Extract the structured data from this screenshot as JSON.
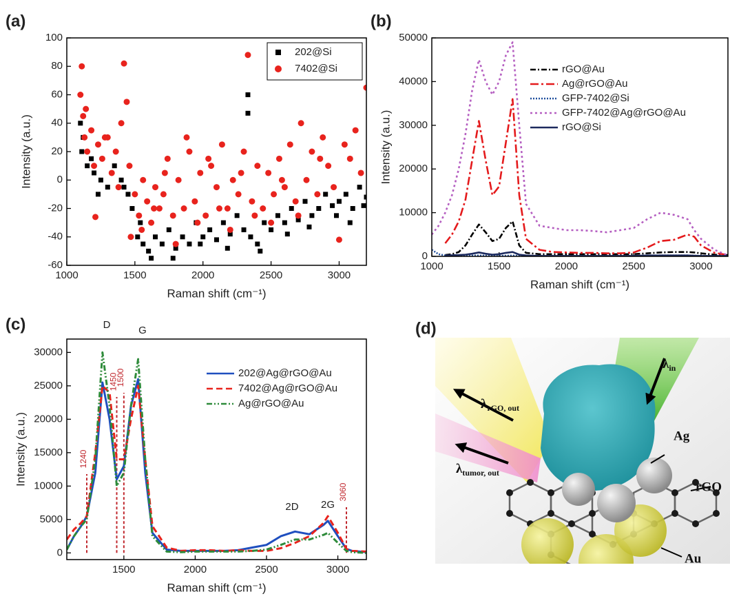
{
  "chart_data": [
    {
      "type": "scatter",
      "panel": "(a)",
      "x_label": "Raman shift (cm⁻¹)",
      "y_label": "Intensity (a.u.)",
      "xlim": [
        1000,
        3200
      ],
      "ylim": [
        -60,
        100
      ],
      "xticks": [
        1000,
        1500,
        2000,
        2500,
        3000
      ],
      "yticks": [
        -60,
        -40,
        -20,
        0,
        20,
        40,
        60,
        80,
        100
      ],
      "legend": "upper right",
      "series": [
        {
          "name": "202@Si",
          "color": "#000000",
          "marker": "square",
          "x": [
            1100,
            1120,
            1150,
            1200,
            1250,
            1300,
            1350,
            1400,
            1450,
            1480,
            1520,
            1560,
            1600,
            1650,
            1700,
            1750,
            1800,
            1850,
            1900,
            1950,
            2000,
            2050,
            2100,
            2150,
            2200,
            2250,
            2300,
            2330,
            2330,
            2350,
            2400,
            2450,
            2500,
            2550,
            2600,
            2650,
            2700,
            2750,
            2800,
            2850,
            2900,
            2950,
            3000,
            3050,
            3100,
            3150,
            3200,
            1110,
            1180,
            1230,
            1420,
            1540,
            1620,
            1780,
            1980,
            2180,
            2420,
            2620,
            2780,
            2980,
            3080,
            3180
          ],
          "values": [
            40,
            30,
            10,
            5,
            0,
            -5,
            10,
            0,
            -10,
            -20,
            -40,
            -45,
            -50,
            -40,
            -45,
            -35,
            -48,
            -40,
            -45,
            -30,
            -40,
            -35,
            -42,
            -30,
            -38,
            -25,
            -35,
            60,
            47,
            -40,
            -45,
            -30,
            -35,
            -25,
            -30,
            -20,
            -28,
            -15,
            -25,
            -20,
            -10,
            -18,
            -15,
            -10,
            -20,
            -5,
            -12,
            20,
            15,
            -10,
            -5,
            -30,
            -55,
            -55,
            -45,
            -48,
            -50,
            -38,
            -33,
            -25,
            -30,
            -18
          ]
        },
        {
          "name": "7402@Si",
          "color": "#e8231d",
          "marker": "circle",
          "x": [
            1100,
            1110,
            1120,
            1130,
            1150,
            1180,
            1200,
            1230,
            1260,
            1300,
            1330,
            1360,
            1400,
            1420,
            1440,
            1460,
            1500,
            1530,
            1560,
            1590,
            1620,
            1650,
            1680,
            1710,
            1740,
            1780,
            1820,
            1860,
            1900,
            1940,
            1980,
            2020,
            2060,
            2100,
            2140,
            2180,
            2220,
            2260,
            2300,
            2330,
            2360,
            2400,
            2440,
            2480,
            2520,
            2560,
            2600,
            2640,
            2680,
            2720,
            2760,
            2800,
            2840,
            2880,
            2920,
            2960,
            3000,
            3040,
            3080,
            3120,
            3160,
            3200,
            1140,
            1210,
            1280,
            1380,
            1470,
            1550,
            1640,
            1720,
            1800,
            1880,
            1960,
            2040,
            2120,
            2200,
            2280,
            2380,
            2500,
            2580,
            2700,
            2860
          ],
          "values": [
            60,
            80,
            45,
            30,
            20,
            35,
            10,
            25,
            15,
            30,
            5,
            20,
            40,
            82,
            55,
            10,
            -10,
            -25,
            0,
            -15,
            -30,
            -5,
            -20,
            -10,
            15,
            -25,
            0,
            -20,
            20,
            -15,
            5,
            -25,
            10,
            -5,
            25,
            -20,
            0,
            -10,
            20,
            88,
            -15,
            10,
            -20,
            5,
            -10,
            15,
            -5,
            25,
            -15,
            40,
            0,
            20,
            -10,
            30,
            10,
            -5,
            -42,
            25,
            15,
            35,
            5,
            65,
            50,
            -26,
            30,
            -5,
            -40,
            -35,
            -20,
            5,
            -45,
            30,
            -30,
            15,
            -20,
            -35,
            5,
            -25,
            -30,
            0,
            -25,
            15
          ]
        }
      ]
    },
    {
      "type": "line",
      "panel": "(b)",
      "x_label": "Raman shift (cm⁻¹)",
      "y_label": "Intensity (a.u.)",
      "xlim": [
        1000,
        3200
      ],
      "ylim": [
        0,
        50000
      ],
      "xticks": [
        1000,
        1500,
        2000,
        2500,
        3000
      ],
      "yticks": [
        0,
        10000,
        20000,
        30000,
        40000,
        50000
      ],
      "legend": "upper right",
      "x": [
        1000,
        1050,
        1100,
        1150,
        1200,
        1250,
        1300,
        1350,
        1400,
        1450,
        1500,
        1550,
        1600,
        1650,
        1700,
        1800,
        1900,
        2000,
        2100,
        2200,
        2300,
        2400,
        2500,
        2600,
        2700,
        2800,
        2900,
        2950,
        3000,
        3100,
        3200
      ],
      "series": [
        {
          "name": "rGO@Au",
          "color": "#000000",
          "dash": "8 3 2 3",
          "values": [
            null,
            null,
            300,
            500,
            1000,
            2500,
            5000,
            7300,
            5500,
            3500,
            4000,
            6500,
            8000,
            2500,
            800,
            500,
            500,
            500,
            500,
            500,
            500,
            500,
            500,
            700,
            900,
            1000,
            1000,
            900,
            700,
            400,
            300
          ]
        },
        {
          "name": "Ag@rGO@Au",
          "color": "#e41a1c",
          "dash": "12 4 3 4",
          "values": [
            null,
            null,
            3000,
            5000,
            8000,
            13000,
            22000,
            31000,
            22000,
            14000,
            16000,
            26000,
            36000,
            14000,
            4000,
            1500,
            1000,
            900,
            800,
            800,
            700,
            700,
            900,
            2000,
            3500,
            3800,
            5000,
            4500,
            2500,
            800,
            300
          ]
        },
        {
          "name": "GFP-7402@Si",
          "color": "#1f4e9c",
          "dash": "2 2",
          "values": [
            1500,
            500,
            200,
            100,
            100,
            100,
            150,
            200,
            150,
            100,
            100,
            150,
            200,
            100,
            100,
            100,
            100,
            100,
            100,
            100,
            100,
            100,
            100,
            150,
            200,
            200,
            200,
            150,
            100,
            100,
            100
          ]
        },
        {
          "name": "GFP-7402@Ag@rGO@Au",
          "color": "#b55fc1",
          "dash": "3 4",
          "values": [
            5000,
            7000,
            10000,
            14000,
            20000,
            28000,
            38000,
            45000,
            40000,
            37000,
            40000,
            46000,
            49000,
            30000,
            12000,
            7000,
            6500,
            6000,
            6000,
            5800,
            5500,
            6000,
            6500,
            8500,
            10000,
            9500,
            8500,
            6000,
            4000,
            1500,
            200
          ]
        },
        {
          "name": "rGO@Si",
          "color": "#1c2a5e",
          "values": [
            null,
            null,
            200,
            250,
            300,
            400,
            600,
            900,
            600,
            400,
            500,
            800,
            1000,
            400,
            200,
            100,
            100,
            100,
            100,
            100,
            100,
            100,
            100,
            200,
            200,
            200,
            200,
            150,
            100,
            100,
            100
          ]
        }
      ]
    },
    {
      "type": "line",
      "panel": "(c)",
      "x_label": "Raman shift (cm⁻¹)",
      "y_label": "Intensity (a.u.)",
      "xlim": [
        1100,
        3200
      ],
      "ylim": [
        -1000,
        32000
      ],
      "xticks": [
        1500,
        2000,
        2500,
        3000
      ],
      "yticks": [
        0,
        5000,
        10000,
        15000,
        20000,
        25000,
        30000
      ],
      "legend": "upper right",
      "annotations": [
        "D",
        "G",
        "2D",
        "2G"
      ],
      "reference_lines": [
        1240,
        1450,
        1500,
        3060
      ],
      "reference_color": "#c0272d",
      "x": [
        1100,
        1150,
        1200,
        1240,
        1300,
        1350,
        1400,
        1450,
        1500,
        1550,
        1600,
        1650,
        1700,
        1800,
        1900,
        2000,
        2100,
        2200,
        2300,
        2400,
        2500,
        2600,
        2700,
        2800,
        2900,
        2930,
        3000,
        3060,
        3100,
        3200
      ],
      "series": [
        {
          "name": "202@Ag@rGO@Au",
          "color": "#1f4fbf",
          "values": [
            500,
            2500,
            4000,
            5500,
            12000,
            25500,
            20000,
            11000,
            13000,
            22000,
            26000,
            12000,
            3000,
            500,
            300,
            300,
            300,
            300,
            400,
            800,
            1200,
            2500,
            3200,
            2800,
            4200,
            4800,
            2500,
            600,
            300,
            100
          ]
        },
        {
          "name": "7402@Ag@rGO@Au",
          "color": "#e8231d",
          "dash": "9 5",
          "values": [
            2000,
            3500,
            4500,
            5500,
            15000,
            25000,
            24000,
            14000,
            14000,
            20000,
            25000,
            14000,
            4000,
            800,
            300,
            400,
            400,
            300,
            400,
            300,
            300,
            700,
            1500,
            2500,
            4500,
            5500,
            3000,
            600,
            300,
            200
          ]
        },
        {
          "name": "Ag@rGO@Au",
          "color": "#2e8b3a",
          "dash": "8 3 2 3 2 3",
          "values": [
            500,
            2500,
            4000,
            5000,
            14000,
            30000,
            22000,
            10000,
            12000,
            22000,
            29000,
            14000,
            2500,
            200,
            100,
            200,
            200,
            200,
            200,
            300,
            500,
            1200,
            2000,
            2000,
            2700,
            3000,
            1500,
            300,
            100,
            0
          ]
        }
      ]
    }
  ],
  "illustration": {
    "panel": "(d)",
    "labels": [
      {
        "symbol": "λ",
        "sub": "rGO, out"
      },
      {
        "symbol": "λ",
        "sub": "in"
      },
      {
        "symbol": "λ",
        "sub": "tumor, out"
      },
      {
        "text": "Ag"
      },
      {
        "text": "rGO"
      },
      {
        "text": "Au"
      }
    ]
  }
}
